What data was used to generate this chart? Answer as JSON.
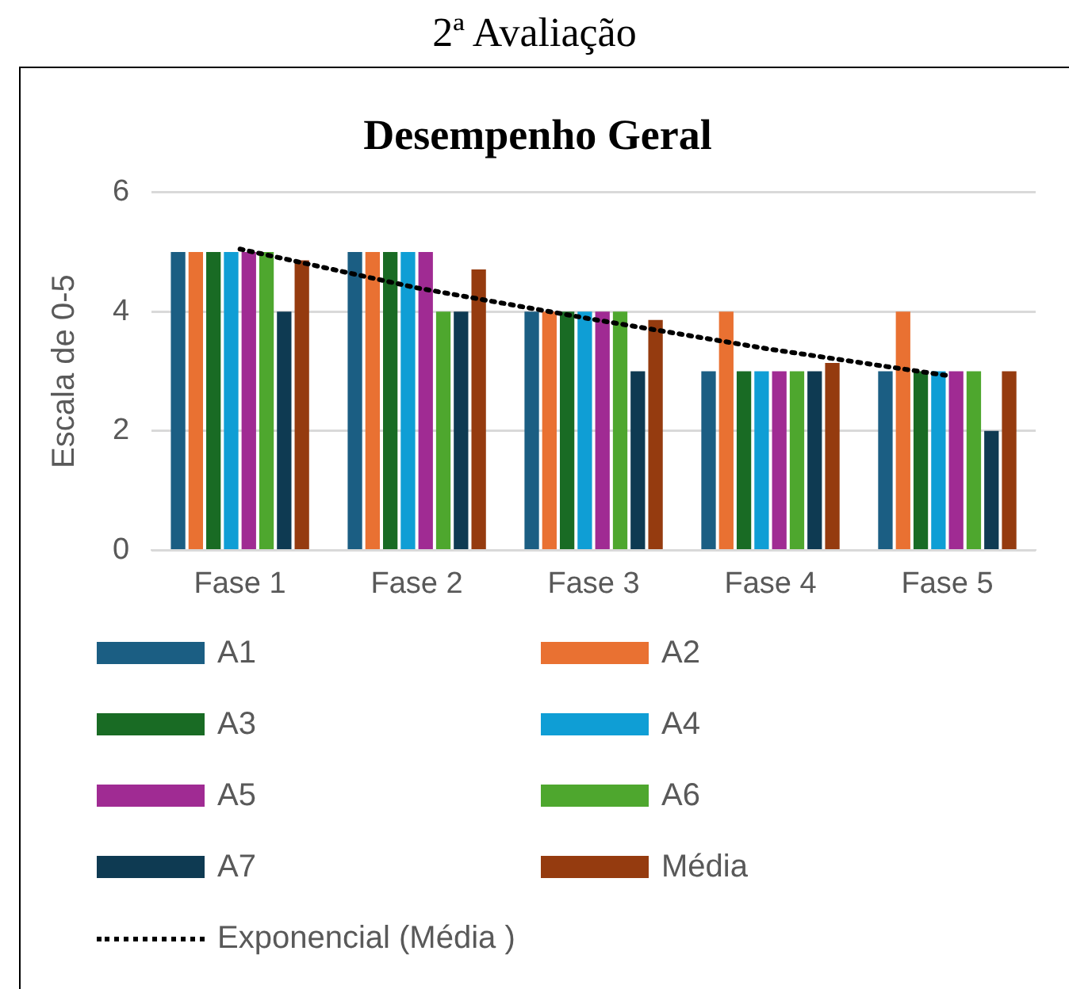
{
  "chart_data": {
    "type": "bar",
    "title": "Desempenho Geral",
    "annotations": [
      "2ª Avaliação"
    ],
    "ylabel": "Escala de 0-5",
    "categories": [
      "Fase 1",
      "Fase 2",
      "Fase 3",
      "Fase 4",
      "Fase 5"
    ],
    "series": [
      {
        "name": "A1",
        "color": "#1b5e83",
        "values": [
          5,
          5,
          4,
          3,
          3
        ]
      },
      {
        "name": "A2",
        "color": "#e97132",
        "values": [
          5,
          5,
          4,
          4,
          4
        ]
      },
      {
        "name": "A3",
        "color": "#196b24",
        "values": [
          5,
          5,
          4,
          3,
          3
        ]
      },
      {
        "name": "A4",
        "color": "#0f9ed5",
        "values": [
          5,
          5,
          4,
          3,
          3
        ]
      },
      {
        "name": "A5",
        "color": "#a02b93",
        "values": [
          5,
          5,
          4,
          3,
          3
        ]
      },
      {
        "name": "A6",
        "color": "#4ea72e",
        "values": [
          5,
          4,
          4,
          3,
          3
        ]
      },
      {
        "name": "A7",
        "color": "#0e3a52",
        "values": [
          4,
          4,
          3,
          3,
          2
        ]
      },
      {
        "name": "Média",
        "color": "#953b0f",
        "values": [
          4.86,
          4.71,
          3.86,
          3.14,
          3
        ]
      },
      {
        "name": "Exponencial (Média )",
        "type": "line",
        "color": "#000000",
        "line_style": "dotted",
        "marker": "none",
        "values": [
          5.05,
          4.4,
          3.87,
          3.37,
          2.93
        ]
      }
    ],
    "ylim": [
      0,
      6
    ],
    "yticks": [
      0,
      2,
      4,
      6
    ],
    "grid": "y",
    "legend": "bottom"
  }
}
